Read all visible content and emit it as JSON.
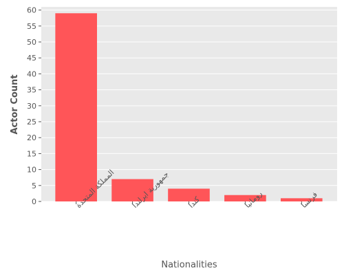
{
  "chart_data": {
    "type": "bar",
    "categories": [
      "المملكة المتحدة",
      "جمهورية ايرلندا",
      "كندا",
      "رومانيا",
      "فرنسا"
    ],
    "values": [
      59,
      7,
      4,
      2,
      1
    ],
    "xlabel": "Nationalities",
    "ylabel": "Actor Count",
    "ylim": [
      0,
      61
    ],
    "yticks": [
      0,
      5,
      10,
      15,
      20,
      25,
      30,
      35,
      40,
      45,
      50,
      55,
      60
    ],
    "grid": true,
    "colors": {
      "bar": "#ff5558",
      "background": "#e9e9e9",
      "grid": "#ffffff"
    }
  }
}
